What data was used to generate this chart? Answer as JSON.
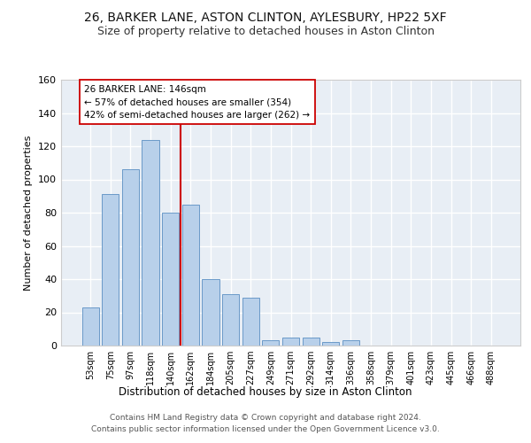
{
  "title_line1": "26, BARKER LANE, ASTON CLINTON, AYLESBURY, HP22 5XF",
  "title_line2": "Size of property relative to detached houses in Aston Clinton",
  "xlabel": "Distribution of detached houses by size in Aston Clinton",
  "ylabel": "Number of detached properties",
  "bar_color": "#b8d0ea",
  "bar_edge_color": "#5a8fc2",
  "background_color": "#e8eef5",
  "grid_color": "#ffffff",
  "categories": [
    "53sqm",
    "75sqm",
    "97sqm",
    "118sqm",
    "140sqm",
    "162sqm",
    "184sqm",
    "205sqm",
    "227sqm",
    "249sqm",
    "271sqm",
    "292sqm",
    "314sqm",
    "336sqm",
    "358sqm",
    "379sqm",
    "401sqm",
    "423sqm",
    "445sqm",
    "466sqm",
    "488sqm"
  ],
  "values": [
    23,
    91,
    106,
    124,
    80,
    85,
    40,
    31,
    29,
    3,
    5,
    5,
    2,
    3,
    0,
    0,
    0,
    0,
    0,
    0,
    0
  ],
  "ylim": [
    0,
    160
  ],
  "yticks": [
    0,
    20,
    40,
    60,
    80,
    100,
    120,
    140,
    160
  ],
  "vline_color": "#cc0000",
  "vline_index": 4.5,
  "annotation_line1": "26 BARKER LANE: 146sqm",
  "annotation_line2": "← 57% of detached houses are smaller (354)",
  "annotation_line3": "42% of semi-detached houses are larger (262) →",
  "annotation_box_facecolor": "#ffffff",
  "annotation_box_edgecolor": "#cc0000",
  "footer_line1": "Contains HM Land Registry data © Crown copyright and database right 2024.",
  "footer_line2": "Contains public sector information licensed under the Open Government Licence v3.0."
}
